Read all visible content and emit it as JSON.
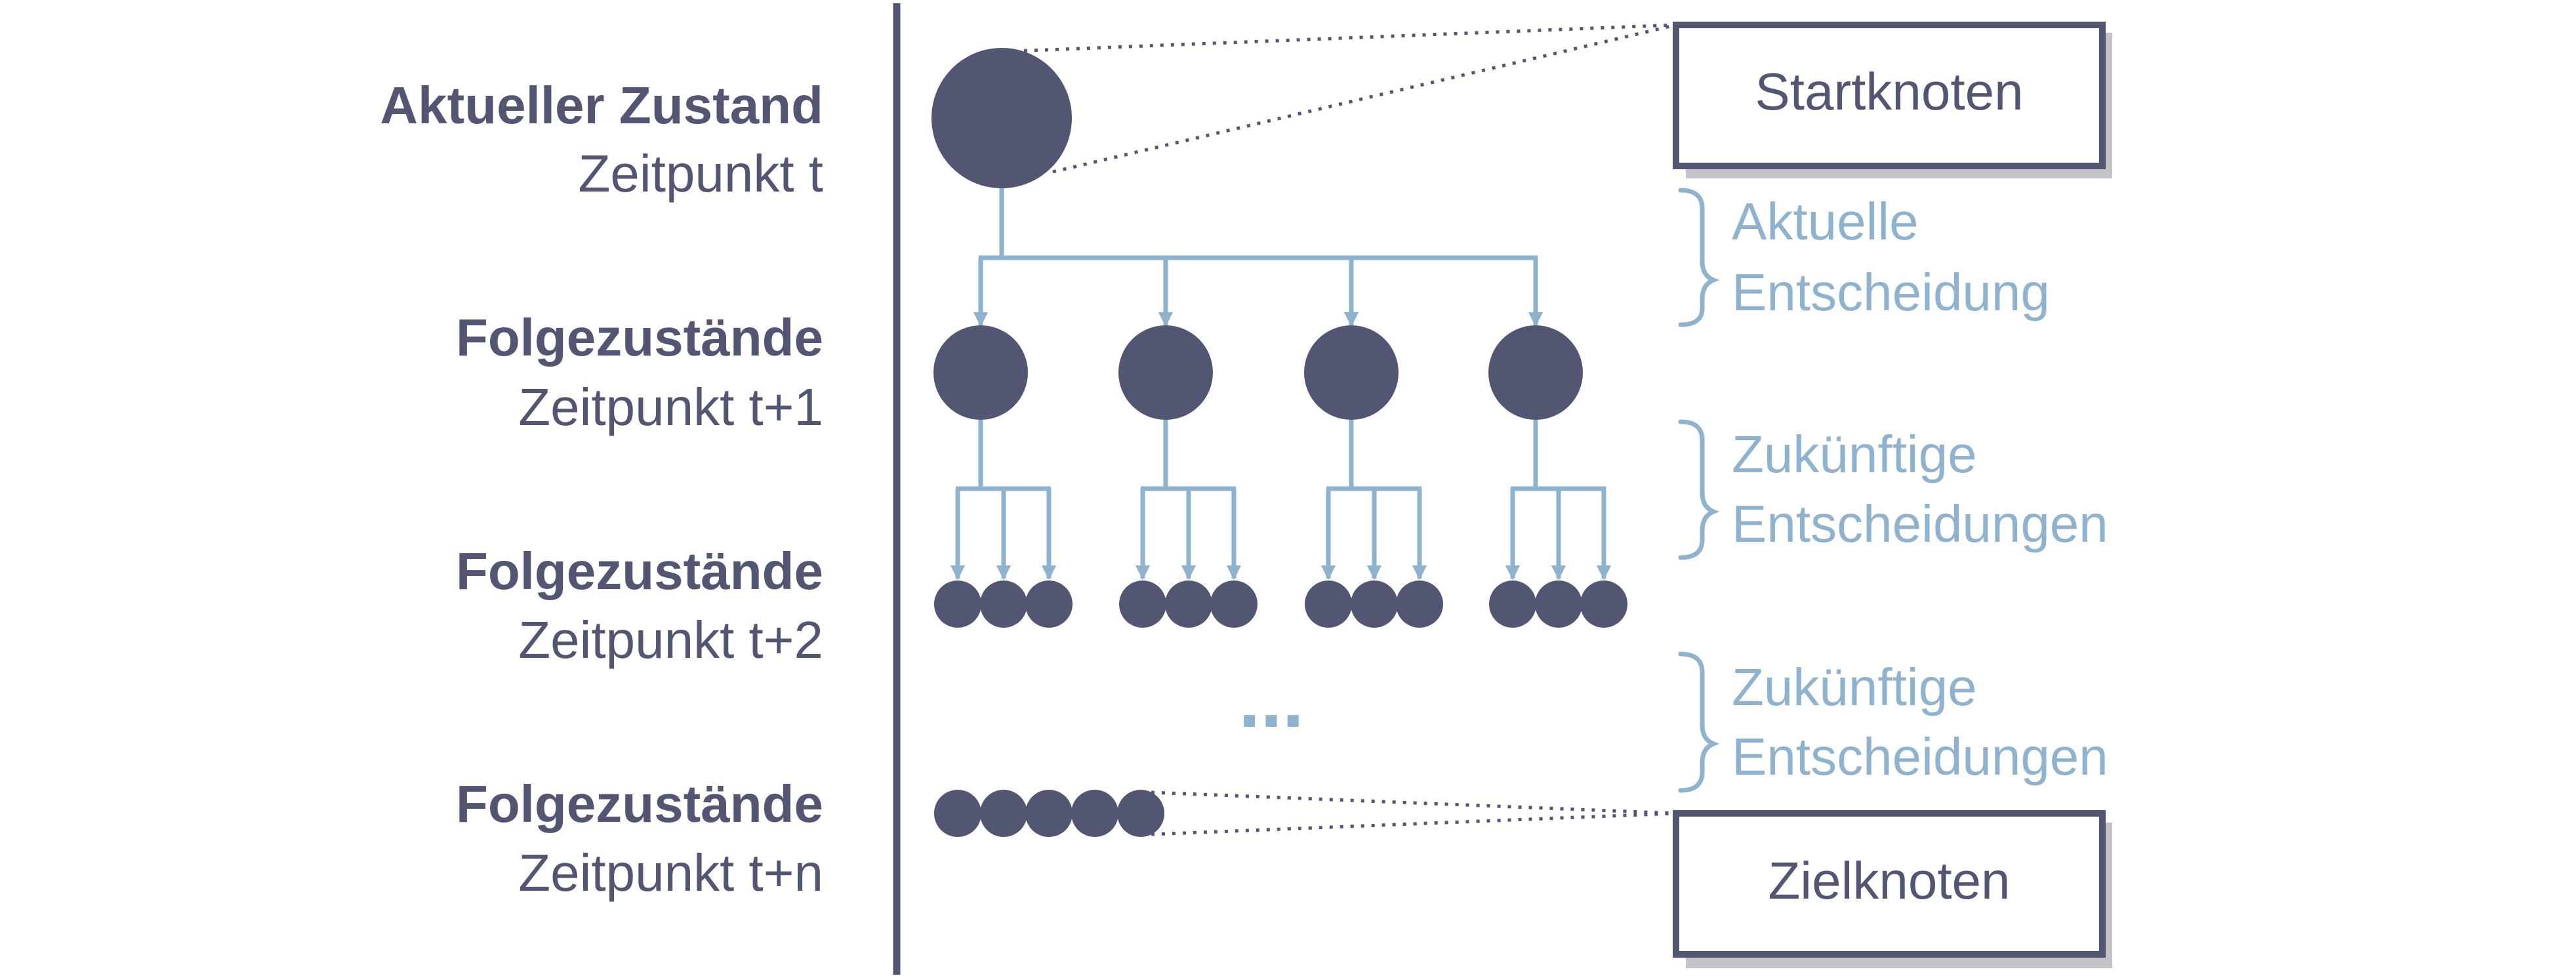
{
  "levels": [
    {
      "title": "Aktueller Zustand",
      "subtitle": "Zeitpunkt t"
    },
    {
      "title": "Folgezustände",
      "subtitle": "Zeitpunkt t+1"
    },
    {
      "title": "Folgezustände",
      "subtitle": "Zeitpunkt t+2"
    },
    {
      "title": "Folgezustände",
      "subtitle": "Zeitpunkt t+n"
    }
  ],
  "boxes": {
    "start": "Startknoten",
    "goal": "Zielknoten"
  },
  "braces": [
    {
      "line1": "Aktuelle",
      "line2": "Entscheidung"
    },
    {
      "line1": "Zukünftige",
      "line2": "Entscheidungen"
    },
    {
      "line1": "Zukünftige",
      "line2": "Entscheidungen"
    }
  ],
  "ellipsis": "...",
  "colors": {
    "node": "#525672",
    "edge": "#8fb2ce",
    "box_shadow": "#c4c4c8",
    "text": "#525672",
    "brace_text": "#8fb2ce"
  }
}
